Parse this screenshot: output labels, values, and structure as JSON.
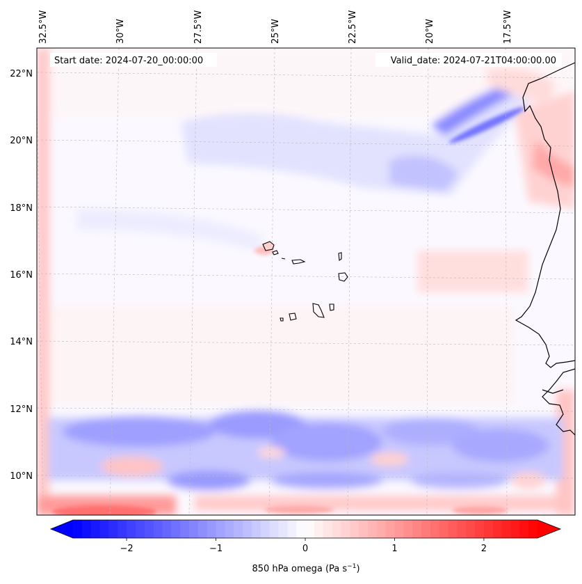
{
  "header": {
    "start_label": "Start date: 2024-07-20_00:00:00",
    "valid_label": "Valid_date: 2024-07-21T04:00:00.00"
  },
  "map": {
    "lon_labels": [
      "32.5°W",
      "30°W",
      "27.5°W",
      "25°W",
      "22.5°W",
      "20°W",
      "17.5°W"
    ],
    "lat_labels": [
      "22°N",
      "20°N",
      "18°N",
      "16°N",
      "14°N",
      "12°N",
      "10°N"
    ]
  },
  "colorbar": {
    "ticks": [
      "−2",
      "−1",
      "0",
      "1",
      "2"
    ],
    "tick_values": [
      -2,
      -1,
      0,
      1,
      2
    ],
    "min": -2.6,
    "max": 2.6,
    "low_color": "#0000ff",
    "mid_color": "#ffffff",
    "high_color": "#ff0000",
    "label": "850 hPa omega (Pa s",
    "label_sup": "−1",
    "label_end": ")"
  }
}
